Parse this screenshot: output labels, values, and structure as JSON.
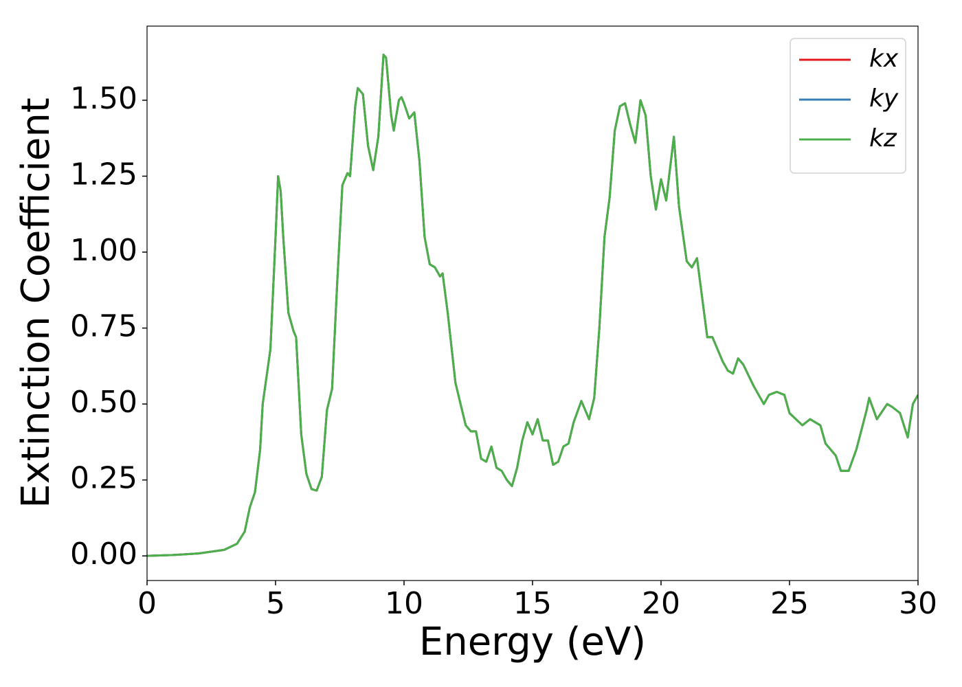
{
  "chart_data": {
    "type": "line",
    "xlabel": "Energy (eV)",
    "ylabel": "Extinction Coefficient",
    "x": [
      0,
      1,
      2,
      3,
      3.5,
      3.8,
      4.0,
      4.2,
      4.4,
      4.5,
      4.8,
      5.0,
      5.1,
      5.2,
      5.3,
      5.5,
      5.7,
      5.8,
      6.0,
      6.2,
      6.4,
      6.6,
      6.8,
      7.0,
      7.2,
      7.4,
      7.6,
      7.8,
      7.9,
      8.1,
      8.2,
      8.4,
      8.6,
      8.8,
      9.0,
      9.2,
      9.3,
      9.5,
      9.6,
      9.8,
      9.9,
      10.0,
      10.2,
      10.4,
      10.6,
      10.8,
      11.0,
      11.2,
      11.4,
      11.5,
      11.7,
      12.0,
      12.2,
      12.4,
      12.6,
      12.8,
      13.0,
      13.2,
      13.4,
      13.6,
      13.8,
      14.0,
      14.2,
      14.4,
      14.6,
      14.8,
      15.0,
      15.2,
      15.4,
      15.6,
      15.8,
      16.0,
      16.2,
      16.4,
      16.6,
      16.9,
      17.2,
      17.4,
      17.6,
      17.8,
      18.0,
      18.2,
      18.4,
      18.6,
      18.8,
      19.0,
      19.2,
      19.4,
      19.6,
      19.8,
      20.0,
      20.2,
      20.5,
      20.7,
      21.0,
      21.2,
      21.4,
      21.6,
      21.8,
      22.0,
      22.4,
      22.6,
      22.8,
      23.0,
      23.2,
      23.6,
      24.0,
      24.2,
      24.5,
      24.8,
      25.0,
      25.5,
      25.8,
      26.2,
      26.4,
      26.8,
      27.0,
      27.3,
      27.6,
      28.0,
      28.1,
      28.4,
      28.8,
      29.0,
      29.3,
      29.6,
      29.8,
      30.0
    ],
    "series": [
      {
        "name": "kx",
        "color": "#e41a1c",
        "values": [
          0,
          0.003,
          0.008,
          0.02,
          0.04,
          0.08,
          0.16,
          0.21,
          0.35,
          0.5,
          0.68,
          1.05,
          1.25,
          1.2,
          1.05,
          0.8,
          0.74,
          0.72,
          0.4,
          0.27,
          0.22,
          0.215,
          0.26,
          0.48,
          0.55,
          0.9,
          1.22,
          1.26,
          1.25,
          1.48,
          1.54,
          1.52,
          1.35,
          1.27,
          1.38,
          1.65,
          1.64,
          1.45,
          1.4,
          1.5,
          1.51,
          1.49,
          1.44,
          1.46,
          1.3,
          1.05,
          0.96,
          0.95,
          0.92,
          0.93,
          0.8,
          0.57,
          0.5,
          0.43,
          0.41,
          0.41,
          0.32,
          0.31,
          0.36,
          0.29,
          0.28,
          0.25,
          0.23,
          0.29,
          0.38,
          0.44,
          0.4,
          0.45,
          0.38,
          0.38,
          0.3,
          0.31,
          0.36,
          0.37,
          0.44,
          0.51,
          0.45,
          0.52,
          0.75,
          1.05,
          1.18,
          1.4,
          1.48,
          1.49,
          1.42,
          1.36,
          1.5,
          1.45,
          1.25,
          1.14,
          1.24,
          1.17,
          1.38,
          1.15,
          0.97,
          0.95,
          0.98,
          0.85,
          0.72,
          0.72,
          0.64,
          0.61,
          0.6,
          0.65,
          0.63,
          0.56,
          0.5,
          0.53,
          0.54,
          0.53,
          0.47,
          0.43,
          0.45,
          0.43,
          0.37,
          0.33,
          0.28,
          0.28,
          0.35,
          0.48,
          0.52,
          0.45,
          0.5,
          0.49,
          0.47,
          0.39,
          0.5,
          0.53
        ]
      },
      {
        "name": "ky",
        "color": "#377eb8",
        "values": [
          0,
          0.003,
          0.008,
          0.02,
          0.04,
          0.08,
          0.16,
          0.21,
          0.35,
          0.5,
          0.68,
          1.05,
          1.25,
          1.2,
          1.05,
          0.8,
          0.74,
          0.72,
          0.4,
          0.27,
          0.22,
          0.215,
          0.26,
          0.48,
          0.55,
          0.9,
          1.22,
          1.26,
          1.25,
          1.48,
          1.54,
          1.52,
          1.35,
          1.27,
          1.38,
          1.65,
          1.64,
          1.45,
          1.4,
          1.5,
          1.51,
          1.49,
          1.44,
          1.46,
          1.3,
          1.05,
          0.96,
          0.95,
          0.92,
          0.93,
          0.8,
          0.57,
          0.5,
          0.43,
          0.41,
          0.41,
          0.32,
          0.31,
          0.36,
          0.29,
          0.28,
          0.25,
          0.23,
          0.29,
          0.38,
          0.44,
          0.4,
          0.45,
          0.38,
          0.38,
          0.3,
          0.31,
          0.36,
          0.37,
          0.44,
          0.51,
          0.45,
          0.52,
          0.75,
          1.05,
          1.18,
          1.4,
          1.48,
          1.49,
          1.42,
          1.36,
          1.5,
          1.45,
          1.25,
          1.14,
          1.24,
          1.17,
          1.38,
          1.15,
          0.97,
          0.95,
          0.98,
          0.85,
          0.72,
          0.72,
          0.64,
          0.61,
          0.6,
          0.65,
          0.63,
          0.56,
          0.5,
          0.53,
          0.54,
          0.53,
          0.47,
          0.43,
          0.45,
          0.43,
          0.37,
          0.33,
          0.28,
          0.28,
          0.35,
          0.48,
          0.52,
          0.45,
          0.5,
          0.49,
          0.47,
          0.39,
          0.5,
          0.53
        ]
      },
      {
        "name": "kz",
        "color": "#4daf4a",
        "values": [
          0,
          0.003,
          0.008,
          0.02,
          0.04,
          0.08,
          0.16,
          0.21,
          0.35,
          0.5,
          0.68,
          1.05,
          1.25,
          1.2,
          1.05,
          0.8,
          0.74,
          0.72,
          0.4,
          0.27,
          0.22,
          0.215,
          0.26,
          0.48,
          0.55,
          0.9,
          1.22,
          1.26,
          1.25,
          1.48,
          1.54,
          1.52,
          1.35,
          1.27,
          1.38,
          1.65,
          1.64,
          1.45,
          1.4,
          1.5,
          1.51,
          1.49,
          1.44,
          1.46,
          1.3,
          1.05,
          0.96,
          0.95,
          0.92,
          0.93,
          0.8,
          0.57,
          0.5,
          0.43,
          0.41,
          0.41,
          0.32,
          0.31,
          0.36,
          0.29,
          0.28,
          0.25,
          0.23,
          0.29,
          0.38,
          0.44,
          0.4,
          0.45,
          0.38,
          0.38,
          0.3,
          0.31,
          0.36,
          0.37,
          0.44,
          0.51,
          0.45,
          0.52,
          0.75,
          1.05,
          1.18,
          1.4,
          1.48,
          1.49,
          1.42,
          1.36,
          1.5,
          1.45,
          1.25,
          1.14,
          1.24,
          1.17,
          1.38,
          1.15,
          0.97,
          0.95,
          0.98,
          0.85,
          0.72,
          0.72,
          0.64,
          0.61,
          0.6,
          0.65,
          0.63,
          0.56,
          0.5,
          0.53,
          0.54,
          0.53,
          0.47,
          0.43,
          0.45,
          0.43,
          0.37,
          0.33,
          0.28,
          0.28,
          0.35,
          0.48,
          0.52,
          0.45,
          0.5,
          0.49,
          0.47,
          0.39,
          0.5,
          0.53
        ]
      }
    ],
    "xlim": [
      0,
      30
    ],
    "xticks": [
      0,
      5,
      10,
      15,
      20,
      25,
      30
    ],
    "ylim": [
      -0.081,
      1.744
    ],
    "yticks": [
      {
        "value": 0,
        "label": "0.00"
      },
      {
        "value": 0.25,
        "label": "0.25"
      },
      {
        "value": 0.5,
        "label": "0.50"
      },
      {
        "value": 0.75,
        "label": "0.75"
      },
      {
        "value": 1,
        "label": "1.00"
      },
      {
        "value": 1.25,
        "label": "1.25"
      },
      {
        "value": 1.5,
        "label": "1.50"
      }
    ],
    "grid": false,
    "legend": "upper right"
  }
}
